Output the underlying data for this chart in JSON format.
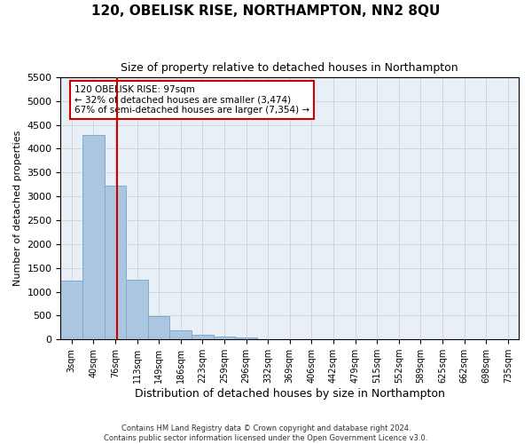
{
  "title": "120, OBELISK RISE, NORTHAMPTON, NN2 8QU",
  "subtitle": "Size of property relative to detached houses in Northampton",
  "xlabel": "Distribution of detached houses by size in Northampton",
  "ylabel": "Number of detached properties",
  "footer_line1": "Contains HM Land Registry data © Crown copyright and database right 2024.",
  "footer_line2": "Contains public sector information licensed under the Open Government Licence v3.0.",
  "bins": [
    "3sqm",
    "40sqm",
    "76sqm",
    "113sqm",
    "149sqm",
    "186sqm",
    "223sqm",
    "259sqm",
    "296sqm",
    "332sqm",
    "369sqm",
    "406sqm",
    "442sqm",
    "479sqm",
    "515sqm",
    "552sqm",
    "589sqm",
    "625sqm",
    "662sqm",
    "698sqm",
    "735sqm"
  ],
  "bar_values": [
    1230,
    4280,
    3220,
    1260,
    480,
    195,
    100,
    65,
    50,
    0,
    0,
    0,
    0,
    0,
    0,
    0,
    0,
    0,
    0,
    0,
    0
  ],
  "bar_color": "#adc6e0",
  "bar_edgecolor": "#7aadd4",
  "ylim_max": 5500,
  "yticks": [
    0,
    500,
    1000,
    1500,
    2000,
    2500,
    3000,
    3500,
    4000,
    4500,
    5000,
    5500
  ],
  "annotation_line1": "120 OBELISK RISE: 97sqm",
  "annotation_line2": "← 32% of detached houses are smaller (3,474)",
  "annotation_line3": "67% of semi-detached houses are larger (7,354) →",
  "marker_line_color": "#cc0000",
  "annotation_box_facecolor": "#ffffff",
  "annotation_box_edgecolor": "#cc0000",
  "grid_color": "#cccccc",
  "plot_bg_color": "#e8eff7",
  "property_sqm": 97,
  "bin_starts": [
    3,
    40,
    76,
    113,
    149,
    186,
    223,
    259,
    296,
    332,
    369,
    406,
    442,
    479,
    515,
    552,
    589,
    625,
    662,
    698,
    735
  ],
  "bin_width": 37
}
